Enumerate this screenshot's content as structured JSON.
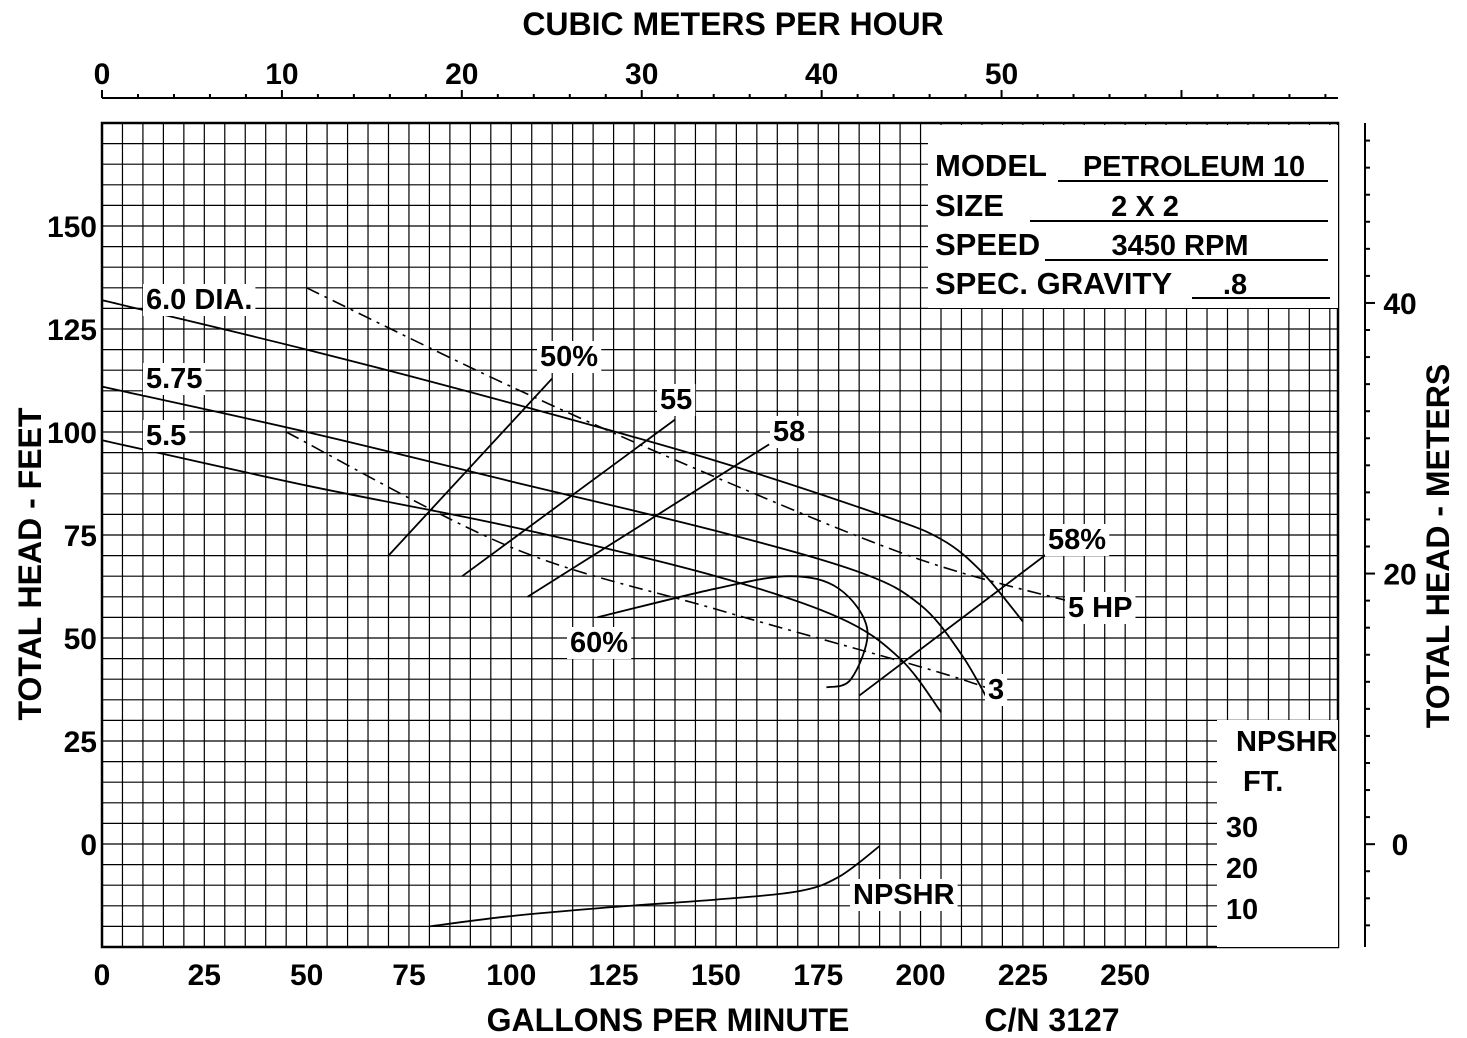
{
  "chart_data": {
    "type": "line",
    "title": "",
    "top_axis": {
      "label": "CUBIC METERS PER HOUR",
      "ticks": [
        "0",
        "10",
        "20",
        "30",
        "40",
        "50"
      ],
      "tick_values": [
        0,
        10,
        20,
        30,
        40,
        50
      ],
      "range": [
        0,
        68.7
      ]
    },
    "bottom_axis": {
      "label": "GALLONS PER MINUTE",
      "ticks": [
        "0",
        "25",
        "50",
        "75",
        "100",
        "125",
        "150",
        "175",
        "200",
        "225",
        "250"
      ],
      "tick_values": [
        0,
        25,
        50,
        75,
        100,
        125,
        150,
        175,
        200,
        225,
        250
      ],
      "range": [
        0,
        302
      ]
    },
    "left_axis": {
      "label": "TOTAL HEAD - FEET",
      "ticks": [
        "0",
        "25",
        "50",
        "75",
        "100",
        "125",
        "150"
      ],
      "tick_values": [
        0,
        25,
        50,
        75,
        100,
        125,
        150
      ],
      "range": [
        -25,
        175
      ]
    },
    "right_axis": {
      "label": "TOTAL HEAD - METERS",
      "ticks": [
        "0",
        "20",
        "40"
      ],
      "tick_values": [
        0,
        20,
        40
      ],
      "range": [
        -7.6,
        53.3
      ]
    },
    "grid": true,
    "info_box": {
      "model_label": "MODEL",
      "model_value": "PETROLEUM 10",
      "size_label": "SIZE",
      "size_value": "2 X 2",
      "speed_label": "SPEED",
      "speed_value": "3450 RPM",
      "gravity_label": "SPEC. GRAVITY",
      "gravity_value": ".8"
    },
    "npshr_scale": {
      "title_line1": "NPSHR",
      "title_line2": "FT.",
      "ticks": [
        "10",
        "20",
        "30"
      ],
      "tick_values": [
        10,
        20,
        30
      ]
    },
    "catalog_number": "C/N 3127",
    "head_curves": [
      {
        "name": "6.0 DIA.",
        "label_text": "6.0 DIA.",
        "points": [
          [
            0,
            132
          ],
          [
            50,
            120
          ],
          [
            100,
            107
          ],
          [
            150,
            93
          ],
          [
            190,
            80
          ],
          [
            205,
            74
          ],
          [
            215,
            66
          ],
          [
            225,
            54
          ]
        ]
      },
      {
        "name": "5.75",
        "label_text": "5.75",
        "points": [
          [
            0,
            111
          ],
          [
            50,
            100
          ],
          [
            100,
            88
          ],
          [
            150,
            76
          ],
          [
            185,
            66
          ],
          [
            200,
            58
          ],
          [
            210,
            46
          ],
          [
            217,
            34
          ]
        ]
      },
      {
        "name": "5.5",
        "label_text": "5.5",
        "points": [
          [
            0,
            98
          ],
          [
            50,
            87
          ],
          [
            100,
            77
          ],
          [
            150,
            65
          ],
          [
            180,
            55
          ],
          [
            195,
            45
          ],
          [
            205,
            32
          ]
        ]
      }
    ],
    "efficiency_curves": [
      {
        "name": "50%",
        "label_text": "50%",
        "points": [
          [
            70,
            70
          ],
          [
            110,
            113
          ]
        ]
      },
      {
        "name": "55",
        "label_text": "55",
        "points": [
          [
            88,
            65
          ],
          [
            140,
            103
          ]
        ]
      },
      {
        "name": "58",
        "label_text": "58",
        "points": [
          [
            104,
            60
          ],
          [
            163,
            97
          ]
        ]
      },
      {
        "name": "58%",
        "label_text": "58%",
        "points": [
          [
            185,
            36
          ],
          [
            233,
            72
          ]
        ]
      },
      {
        "name": "60%",
        "label_text": "60%",
        "points": [
          [
            121,
            55
          ],
          [
            150,
            62
          ],
          [
            168,
            65
          ],
          [
            180,
            62
          ],
          [
            187,
            52
          ],
          [
            183,
            40
          ],
          [
            177,
            38
          ]
        ]
      }
    ],
    "hp_lines": [
      {
        "name": "5 HP",
        "label_text": "5 HP",
        "points": [
          [
            50,
            135
          ],
          [
            100,
            111
          ],
          [
            150,
            89
          ],
          [
            200,
            69
          ],
          [
            240,
            58
          ]
        ]
      },
      {
        "name": "3",
        "label_text": "3",
        "points": [
          [
            45,
            100
          ],
          [
            100,
            72
          ],
          [
            150,
            57
          ],
          [
            200,
            43
          ],
          [
            216,
            38
          ]
        ]
      }
    ],
    "npshr_curve": {
      "name": "NPSHR",
      "label_text": "NPSHR",
      "points": [
        [
          80,
          5
        ],
        [
          100,
          7.5
        ],
        [
          125,
          9.7
        ],
        [
          150,
          11.5
        ],
        [
          170,
          13.5
        ],
        [
          180,
          17
        ],
        [
          190,
          24.5
        ]
      ]
    }
  }
}
